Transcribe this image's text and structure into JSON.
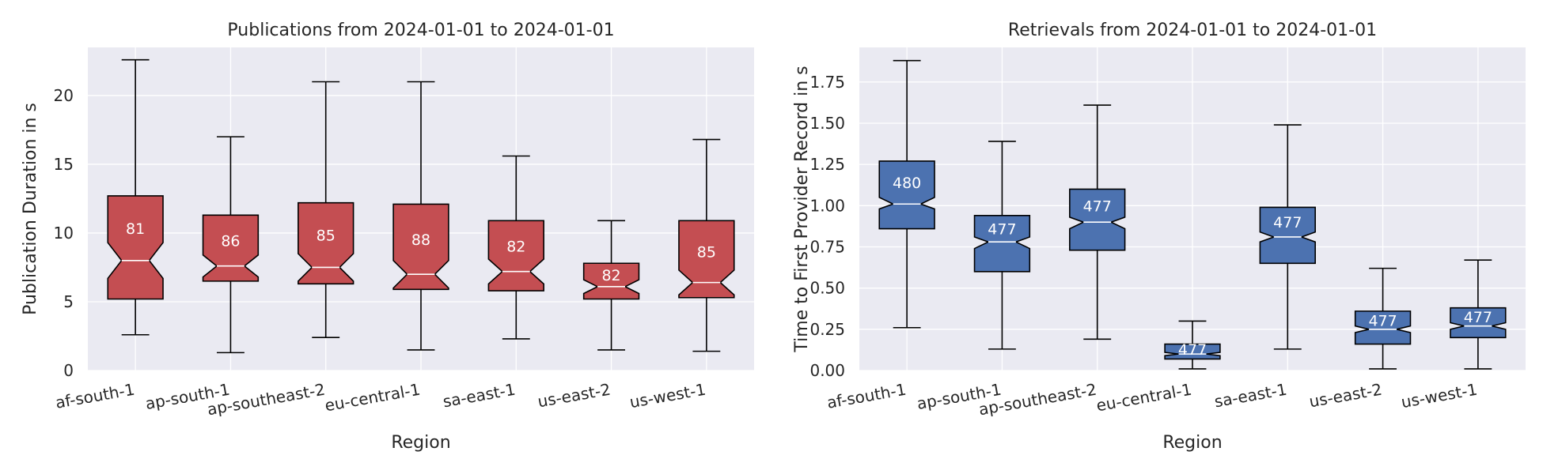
{
  "chart_data": [
    {
      "type": "boxplot",
      "title": "Publications from 2024-01-01 to 2024-01-01",
      "xlabel": "Region",
      "ylabel": "Publication Duration in s",
      "ylim": [
        0,
        23.5
      ],
      "yticks": [
        0,
        5,
        10,
        15,
        20
      ],
      "ytick_labels": [
        "0",
        "5",
        "10",
        "15",
        "20"
      ],
      "grid": true,
      "color": "#c44e52",
      "median_color": "#ffffff",
      "categories": [
        "af-south-1",
        "ap-south-1",
        "ap-southeast-2",
        "eu-central-1",
        "sa-east-1",
        "us-east-2",
        "us-west-1"
      ],
      "boxes": [
        {
          "whislo": 2.6,
          "q1": 5.2,
          "med": 8.0,
          "q3": 12.7,
          "whishi": 22.6,
          "notch_lo": 6.7,
          "notch_hi": 9.3,
          "label": "81"
        },
        {
          "whislo": 1.3,
          "q1": 6.5,
          "med": 7.6,
          "q3": 11.3,
          "whishi": 17.0,
          "notch_lo": 6.8,
          "notch_hi": 8.4,
          "label": "86"
        },
        {
          "whislo": 2.4,
          "q1": 6.3,
          "med": 7.5,
          "q3": 12.2,
          "whishi": 21.0,
          "notch_lo": 6.5,
          "notch_hi": 8.5,
          "label": "85"
        },
        {
          "whislo": 1.5,
          "q1": 5.9,
          "med": 7.0,
          "q3": 12.1,
          "whishi": 21.0,
          "notch_lo": 6.0,
          "notch_hi": 8.0,
          "label": "88"
        },
        {
          "whislo": 2.3,
          "q1": 5.8,
          "med": 7.2,
          "q3": 10.9,
          "whishi": 15.6,
          "notch_lo": 6.3,
          "notch_hi": 8.1,
          "label": "82"
        },
        {
          "whislo": 1.5,
          "q1": 5.2,
          "med": 6.1,
          "q3": 7.8,
          "whishi": 10.9,
          "notch_lo": 5.6,
          "notch_hi": 6.6,
          "label": "82"
        },
        {
          "whislo": 1.4,
          "q1": 5.3,
          "med": 6.4,
          "q3": 10.9,
          "whishi": 16.8,
          "notch_lo": 5.5,
          "notch_hi": 7.3,
          "label": "85"
        }
      ]
    },
    {
      "type": "boxplot",
      "title": "Retrievals from 2024-01-01 to 2024-01-01",
      "xlabel": "Region",
      "ylabel": "Time to First Provider Record in s",
      "ylim": [
        0,
        1.96
      ],
      "yticks": [
        0,
        0.25,
        0.5,
        0.75,
        1.0,
        1.25,
        1.5,
        1.75
      ],
      "ytick_labels": [
        "0.00",
        "0.25",
        "0.50",
        "0.75",
        "1.00",
        "1.25",
        "1.50",
        "1.75"
      ],
      "grid": true,
      "color": "#4c72b0",
      "median_color": "#ffffff",
      "categories": [
        "af-south-1",
        "ap-south-1",
        "ap-southeast-2",
        "eu-central-1",
        "sa-east-1",
        "us-east-2",
        "us-west-1"
      ],
      "boxes": [
        {
          "whislo": 0.26,
          "q1": 0.86,
          "med": 1.01,
          "q3": 1.27,
          "whishi": 1.88,
          "notch_lo": 0.98,
          "notch_hi": 1.05,
          "label": "480"
        },
        {
          "whislo": 0.13,
          "q1": 0.6,
          "med": 0.78,
          "q3": 0.94,
          "whishi": 1.39,
          "notch_lo": 0.74,
          "notch_hi": 0.81,
          "label": "477"
        },
        {
          "whislo": 0.19,
          "q1": 0.73,
          "med": 0.9,
          "q3": 1.1,
          "whishi": 1.61,
          "notch_lo": 0.86,
          "notch_hi": 0.93,
          "label": "477"
        },
        {
          "whislo": 0.01,
          "q1": 0.07,
          "med": 0.1,
          "q3": 0.16,
          "whishi": 0.3,
          "notch_lo": 0.09,
          "notch_hi": 0.11,
          "label": "477"
        },
        {
          "whislo": 0.13,
          "q1": 0.65,
          "med": 0.81,
          "q3": 0.99,
          "whishi": 1.49,
          "notch_lo": 0.78,
          "notch_hi": 0.84,
          "label": "477"
        },
        {
          "whislo": 0.01,
          "q1": 0.16,
          "med": 0.25,
          "q3": 0.36,
          "whishi": 0.62,
          "notch_lo": 0.23,
          "notch_hi": 0.27,
          "label": "477"
        },
        {
          "whislo": 0.01,
          "q1": 0.2,
          "med": 0.27,
          "q3": 0.38,
          "whishi": 0.67,
          "notch_lo": 0.25,
          "notch_hi": 0.29,
          "label": "477"
        }
      ]
    }
  ]
}
